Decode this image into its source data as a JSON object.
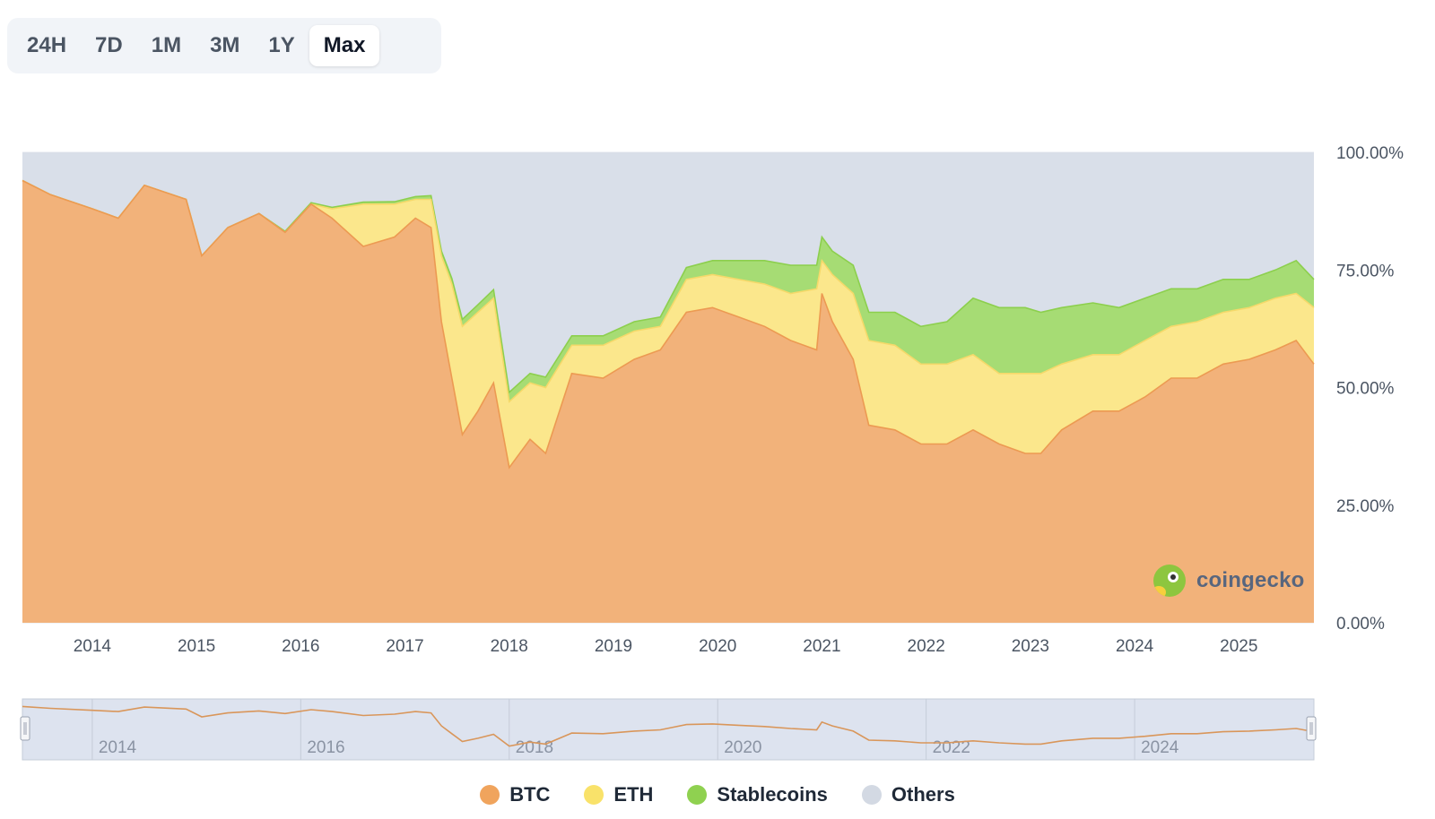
{
  "range_tabs": {
    "items": [
      {
        "label": "24H",
        "active": false
      },
      {
        "label": "7D",
        "active": false
      },
      {
        "label": "1M",
        "active": false
      },
      {
        "label": "3M",
        "active": false
      },
      {
        "label": "1Y",
        "active": false
      },
      {
        "label": "Max",
        "active": true
      }
    ]
  },
  "watermark": {
    "text": "coingecko"
  },
  "colors": {
    "BTC": "#f2b27a",
    "BTC_line": "#ec9a52",
    "ETH": "#fbe78c",
    "Stablecoins": "#a6dc74",
    "Stablecoins_line": "#8ccf4d",
    "Others": "#d9dfe9",
    "navigator_line": "#d9965a"
  },
  "chart_data": {
    "type": "area",
    "stacked": true,
    "ylim": [
      0,
      100
    ],
    "y_ticks": [
      "0.00%",
      "25.00%",
      "50.00%",
      "75.00%",
      "100.00%"
    ],
    "x_ticks": [
      "2014",
      "2015",
      "2016",
      "2017",
      "2018",
      "2019",
      "2020",
      "2021",
      "2022",
      "2023",
      "2024",
      "2025"
    ],
    "x_range": [
      2013.33,
      2025.72
    ],
    "legend_position": "bottom",
    "x": [
      2013.33,
      2013.6,
      2014.0,
      2014.25,
      2014.5,
      2014.9,
      2015.05,
      2015.3,
      2015.6,
      2015.85,
      2016.1,
      2016.3,
      2016.6,
      2016.9,
      2017.1,
      2017.25,
      2017.35,
      2017.45,
      2017.55,
      2017.7,
      2017.85,
      2018.0,
      2018.2,
      2018.35,
      2018.6,
      2018.9,
      2019.2,
      2019.45,
      2019.7,
      2019.95,
      2020.2,
      2020.45,
      2020.7,
      2020.95,
      2021.0,
      2021.1,
      2021.3,
      2021.45,
      2021.7,
      2021.95,
      2022.2,
      2022.45,
      2022.7,
      2022.95,
      2023.1,
      2023.3,
      2023.6,
      2023.85,
      2024.1,
      2024.35,
      2024.6,
      2024.85,
      2025.1,
      2025.35,
      2025.55,
      2025.72
    ],
    "series": [
      {
        "name": "BTC",
        "values": [
          94,
          91,
          88,
          86,
          93,
          90,
          78,
          84,
          87,
          83,
          89,
          86,
          80,
          82,
          86,
          84,
          64,
          52,
          40,
          45,
          51,
          33,
          39,
          36,
          53,
          52,
          56,
          58,
          66,
          67,
          65,
          63,
          60,
          58,
          70,
          64,
          56,
          42,
          41,
          38,
          38,
          41,
          38,
          36,
          36,
          41,
          45,
          45,
          48,
          52,
          52,
          55,
          56,
          58,
          60,
          55
        ]
      },
      {
        "name": "ETH",
        "values": [
          0,
          0,
          0,
          0,
          0,
          0,
          0,
          0,
          0,
          0,
          0,
          2,
          9,
          7,
          4,
          6,
          14,
          20,
          23,
          21,
          18,
          14,
          12,
          14,
          6,
          7,
          6,
          5,
          7,
          7,
          8,
          9,
          10,
          13,
          7,
          10,
          14,
          18,
          18,
          17,
          17,
          16,
          15,
          17,
          17,
          14,
          12,
          12,
          12,
          11,
          12,
          11,
          11,
          11,
          10,
          12
        ]
      },
      {
        "name": "Stablecoins",
        "values": [
          0,
          0,
          0,
          0,
          0,
          0,
          0,
          0,
          0,
          0.2,
          0.3,
          0.3,
          0.4,
          0.5,
          0.6,
          0.8,
          1,
          1.2,
          1.5,
          1.6,
          1.8,
          2,
          2,
          2.2,
          2,
          2,
          2,
          2,
          2.5,
          3,
          4,
          5,
          6,
          5,
          5,
          5,
          6,
          6,
          7,
          8,
          9,
          12,
          14,
          14,
          13,
          12,
          11,
          10,
          9,
          8,
          7,
          7,
          6,
          6,
          7,
          6
        ]
      },
      {
        "name": "Others",
        "values": [
          6,
          9,
          12,
          14,
          7,
          10,
          22,
          16,
          13,
          16.8,
          10.7,
          11.7,
          10.6,
          10.5,
          9.4,
          9.2,
          21,
          26.8,
          35.5,
          32.4,
          29.2,
          51,
          47,
          47.8,
          39,
          39,
          36,
          35,
          24.5,
          23,
          23,
          23,
          24,
          24,
          18,
          21,
          24,
          34,
          34,
          37,
          36,
          31,
          33,
          33,
          34,
          33,
          32,
          33,
          31,
          29,
          29,
          27,
          27,
          25,
          23,
          27
        ]
      }
    ],
    "navigator": {
      "x_ticks": [
        "2014",
        "2016",
        "2018",
        "2020",
        "2022",
        "2024"
      ]
    }
  }
}
